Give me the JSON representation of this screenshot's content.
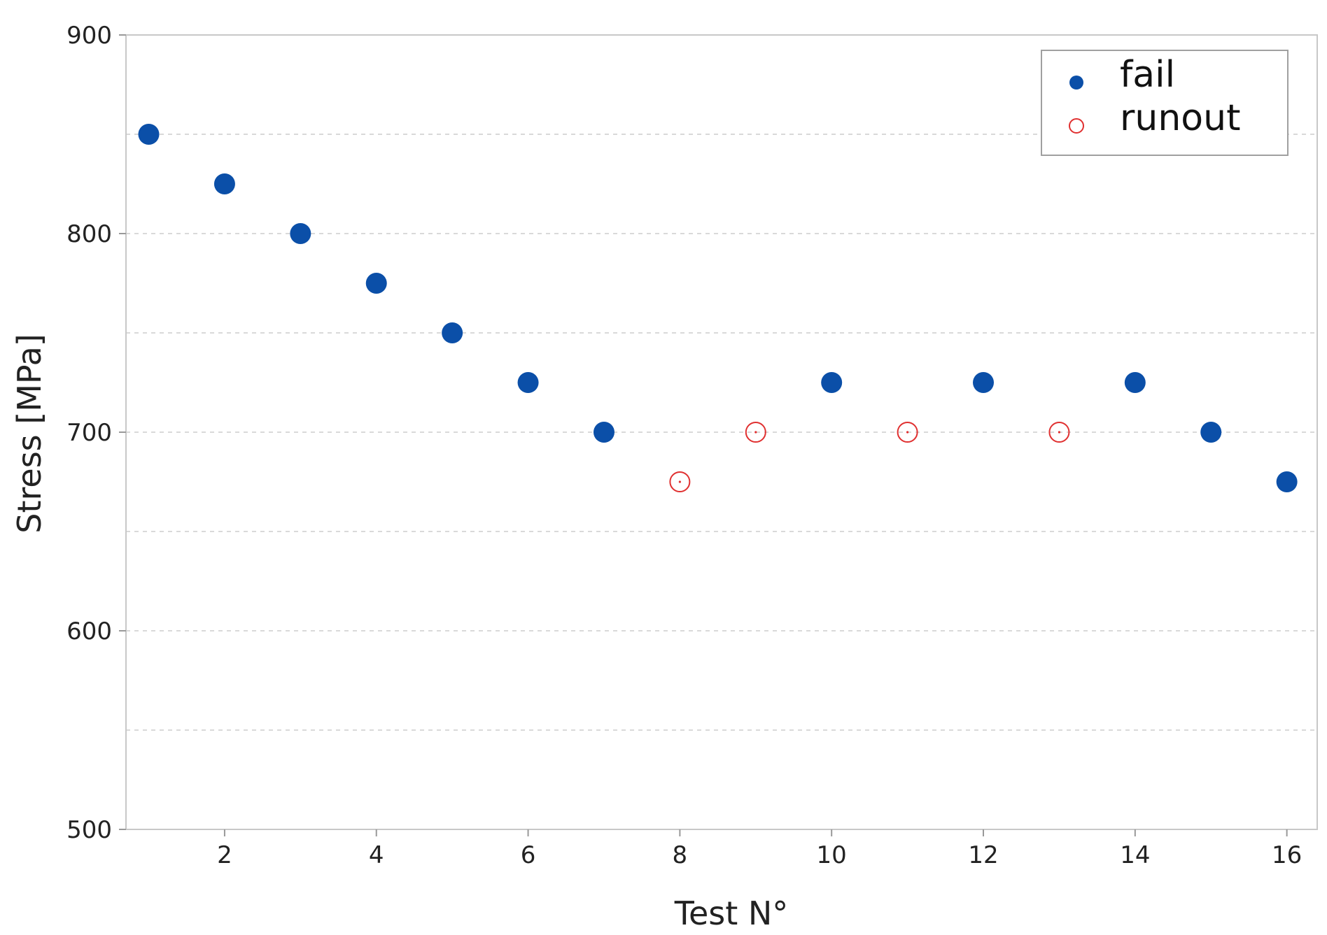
{
  "chart_data": {
    "type": "scatter",
    "xlabel": "Test N°",
    "ylabel": "Stress [MPa]",
    "xlim": [
      0.7,
      16.4
    ],
    "ylim": [
      500,
      900
    ],
    "xticks": [
      2,
      4,
      6,
      8,
      10,
      12,
      14,
      16
    ],
    "yticks": [
      500,
      600,
      700,
      800,
      900
    ],
    "ygrid_minor": [
      550,
      650,
      750,
      850
    ],
    "grid": true,
    "legend_position": "top-right",
    "series": [
      {
        "name": "fail",
        "marker": "filled-circle",
        "color": "#0b4fa8",
        "x": [
          1,
          2,
          3,
          4,
          5,
          6,
          7,
          10,
          12,
          14,
          15,
          16
        ],
        "y": [
          850,
          825,
          800,
          775,
          750,
          725,
          700,
          725,
          725,
          725,
          700,
          675
        ]
      },
      {
        "name": "runout",
        "marker": "open-circle",
        "color": "#e03030",
        "x": [
          8,
          9,
          11,
          13
        ],
        "y": [
          675,
          700,
          700,
          700
        ]
      }
    ]
  }
}
